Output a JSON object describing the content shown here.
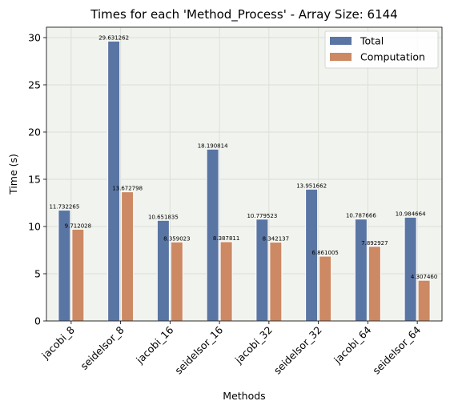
{
  "chart_data": {
    "type": "bar",
    "title": "Times for each 'Method_Process' - Array Size: 6144",
    "xlabel": "Methods",
    "ylabel": "Time (s)",
    "ylim": [
      0,
      31.1
    ],
    "yticks": [
      0,
      5,
      10,
      15,
      20,
      25,
      30
    ],
    "grid": true,
    "legend_position": "top-right",
    "categories": [
      "jacobi_8",
      "seidelsor_8",
      "jacobi_16",
      "seidelsor_16",
      "jacobi_32",
      "seidelsor_32",
      "jacobi_64",
      "seidelsor_64"
    ],
    "series": [
      {
        "name": "Total",
        "color": "#5975a4",
        "values": [
          11.732265,
          29.631262,
          10.651835,
          18.190814,
          10.779523,
          13.951662,
          10.787666,
          10.984664
        ],
        "labels": [
          "11.732265",
          "29.631262",
          "10.651835",
          "18.190814",
          "10.779523",
          "13.951662",
          "10.787666",
          "10.984664"
        ]
      },
      {
        "name": "Computation",
        "color": "#cc8963",
        "values": [
          9.712028,
          13.672798,
          8.359023,
          8.387811,
          8.342137,
          6.861005,
          7.892927,
          4.30746
        ],
        "labels": [
          "9.712028",
          "13.672798",
          "8.359023",
          "8.387811",
          "8.342137",
          "6.861005",
          "7.892927",
          "4.307460"
        ]
      }
    ],
    "plot_background": "#f1f3ee",
    "grid_color": "#dcdfd8"
  }
}
